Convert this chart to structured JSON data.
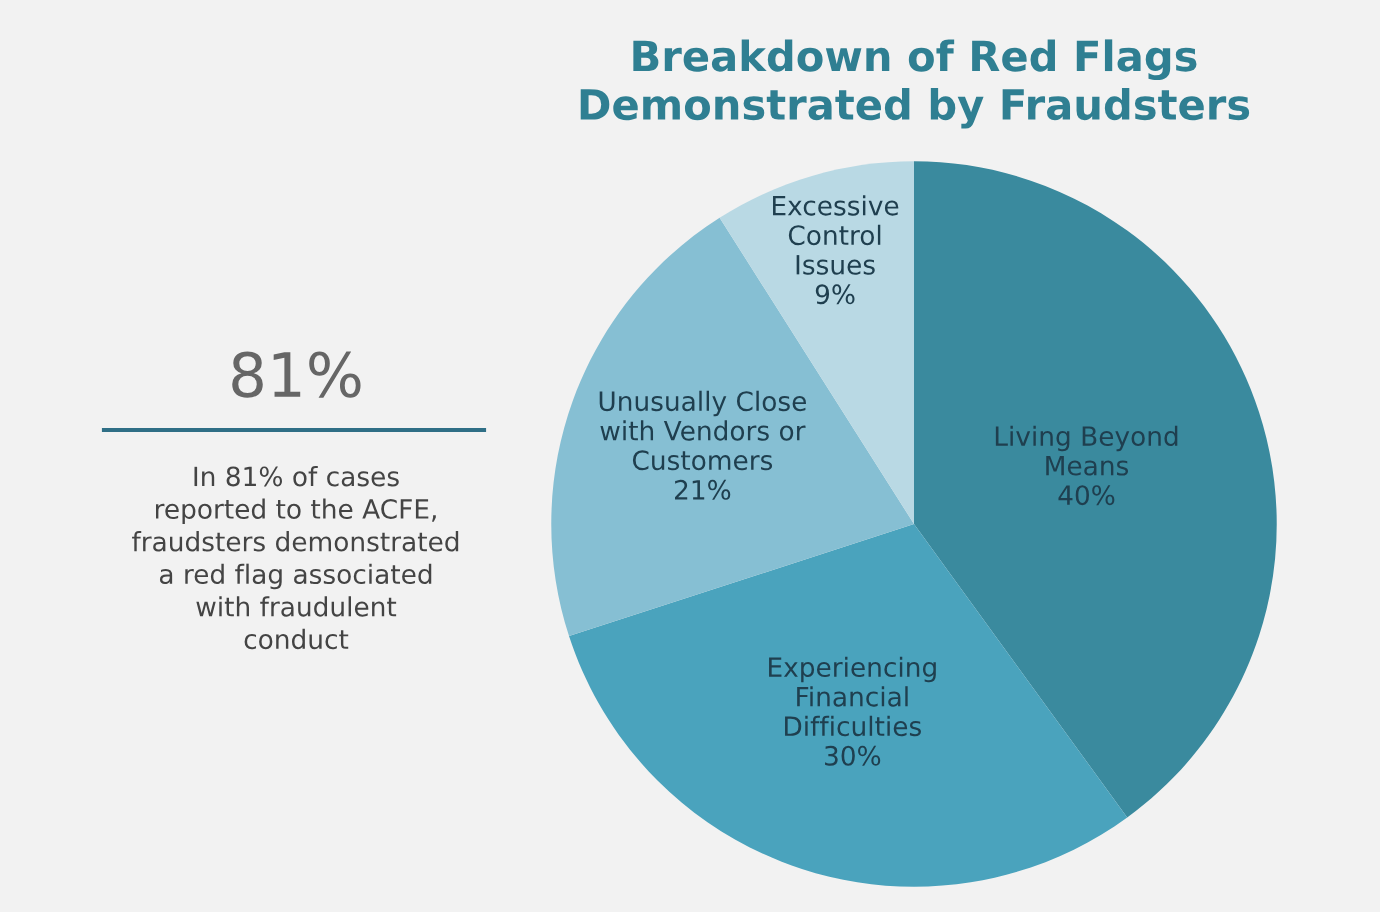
{
  "chart_data": {
    "type": "pie",
    "title": "Breakdown of Red Flags\nDemonstrated by Fraudsters",
    "categories": [
      "Living Beyond\nMeans",
      "Experiencing\nFinancial\nDifficulties",
      "Unusually Close\nwith Vendors or\nCustomers",
      "Excessive\nControl\nIssues"
    ],
    "values": [
      40,
      30,
      21,
      9
    ],
    "colors": [
      "#3a8a9e",
      "#4aa3bd",
      "#86bfd3",
      "#b9d9e4"
    ],
    "value_labels": [
      "40%",
      "30%",
      "21%",
      "9%"
    ],
    "annotations": [
      "81%",
      "In 81% of cases\nreported to the ACFE,\nfraudsters demonstrated\na red flag associated\nwith fraudulent\nconduct"
    ]
  }
}
